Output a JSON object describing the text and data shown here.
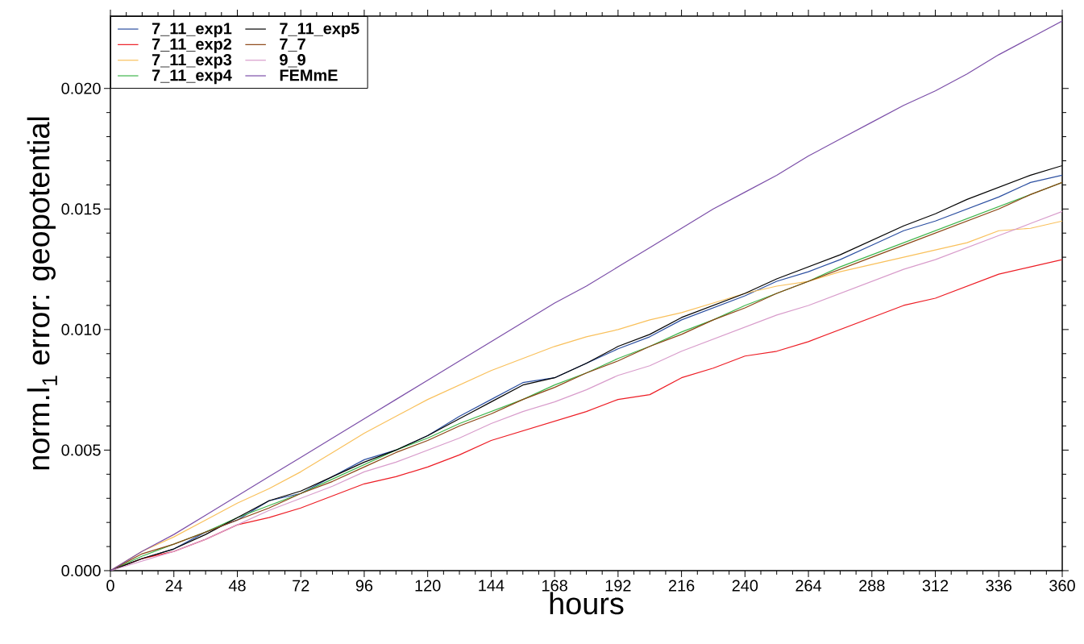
{
  "chart_data": {
    "type": "line",
    "xlabel": "hours",
    "ylabel": "norm.l$_{1}$ error: geopotential",
    "x": [
      0,
      12,
      24,
      36,
      48,
      60,
      72,
      84,
      96,
      108,
      120,
      132,
      144,
      156,
      168,
      180,
      192,
      204,
      216,
      228,
      240,
      252,
      264,
      276,
      288,
      300,
      312,
      324,
      336,
      348,
      360
    ],
    "series": [
      {
        "name": "7_11_exp1",
        "color": "#2a4ea0",
        "values": [
          0,
          0.0005,
          0.0009,
          0.0016,
          0.0021,
          0.0029,
          0.0032,
          0.0039,
          0.0046,
          0.005,
          0.0056,
          0.0064,
          0.0071,
          0.0078,
          0.008,
          0.0086,
          0.0092,
          0.0097,
          0.0104,
          0.0109,
          0.0114,
          0.012,
          0.0124,
          0.0129,
          0.0135,
          0.0141,
          0.0145,
          0.015,
          0.0155,
          0.0161,
          0.0164
        ]
      },
      {
        "name": "7_11_exp2",
        "color": "#ed1c24",
        "values": [
          0,
          0.0005,
          0.0008,
          0.0013,
          0.0019,
          0.0022,
          0.0026,
          0.0031,
          0.0036,
          0.0039,
          0.0043,
          0.0048,
          0.0054,
          0.0058,
          0.0062,
          0.0066,
          0.0071,
          0.0073,
          0.008,
          0.0084,
          0.0089,
          0.0091,
          0.0095,
          0.01,
          0.0105,
          0.011,
          0.0113,
          0.0118,
          0.0123,
          0.0126,
          0.0129
        ]
      },
      {
        "name": "7_11_exp3",
        "color": "#f9c05b",
        "values": [
          0,
          0.0008,
          0.0014,
          0.0021,
          0.0028,
          0.0034,
          0.0041,
          0.0049,
          0.0057,
          0.0064,
          0.0071,
          0.0077,
          0.0083,
          0.0088,
          0.0093,
          0.0097,
          0.01,
          0.0104,
          0.0107,
          0.0111,
          0.0115,
          0.0118,
          0.012,
          0.0124,
          0.0127,
          0.013,
          0.0133,
          0.0136,
          0.0141,
          0.0142,
          0.0145
        ]
      },
      {
        "name": "7_11_exp4",
        "color": "#3db54a",
        "values": [
          0,
          0.0006,
          0.0011,
          0.0016,
          0.0022,
          0.0027,
          0.0032,
          0.0038,
          0.0044,
          0.005,
          0.0055,
          0.0061,
          0.0066,
          0.0071,
          0.0077,
          0.0082,
          0.0088,
          0.0093,
          0.0099,
          0.0104,
          0.011,
          0.0115,
          0.012,
          0.0126,
          0.0131,
          0.0136,
          0.0141,
          0.0146,
          0.0151,
          0.0156,
          0.0161
        ]
      },
      {
        "name": "7_11_exp5",
        "color": "#000000",
        "values": [
          0,
          0.0005,
          0.0009,
          0.0015,
          0.0022,
          0.0029,
          0.0033,
          0.0039,
          0.0045,
          0.005,
          0.0056,
          0.0063,
          0.007,
          0.0077,
          0.008,
          0.0086,
          0.0093,
          0.0098,
          0.0105,
          0.011,
          0.0115,
          0.0121,
          0.0126,
          0.0131,
          0.0137,
          0.0143,
          0.0148,
          0.0154,
          0.0159,
          0.0164,
          0.0168
        ]
      },
      {
        "name": "7_7",
        "color": "#8b4513",
        "values": [
          0,
          0.0007,
          0.0011,
          0.0016,
          0.0021,
          0.0026,
          0.0032,
          0.0037,
          0.0043,
          0.0049,
          0.0054,
          0.006,
          0.0065,
          0.0071,
          0.0076,
          0.0082,
          0.0087,
          0.0093,
          0.0098,
          0.0104,
          0.0109,
          0.0115,
          0.012,
          0.0125,
          0.013,
          0.0135,
          0.014,
          0.0145,
          0.015,
          0.0156,
          0.0161
        ]
      },
      {
        "name": "9_9",
        "color": "#d89ccb",
        "values": [
          0,
          0.0004,
          0.0008,
          0.0013,
          0.0019,
          0.0025,
          0.003,
          0.0035,
          0.0041,
          0.0045,
          0.005,
          0.0055,
          0.0061,
          0.0066,
          0.007,
          0.0075,
          0.0081,
          0.0085,
          0.0091,
          0.0096,
          0.0101,
          0.0106,
          0.011,
          0.0115,
          0.012,
          0.0125,
          0.0129,
          0.0134,
          0.0139,
          0.0144,
          0.0149
        ]
      },
      {
        "name": "FEMmE",
        "color": "#7b4ea8",
        "values": [
          0,
          0.0008,
          0.0015,
          0.0023,
          0.0031,
          0.0039,
          0.0047,
          0.0055,
          0.0063,
          0.0071,
          0.0079,
          0.0087,
          0.0095,
          0.0103,
          0.0111,
          0.0118,
          0.0126,
          0.0134,
          0.0142,
          0.015,
          0.0157,
          0.0164,
          0.0172,
          0.0179,
          0.0186,
          0.0193,
          0.0199,
          0.0206,
          0.0214,
          0.0221,
          0.0228
        ]
      }
    ],
    "xlim": [
      0,
      360
    ],
    "ylim": [
      0,
      0.023
    ],
    "xticks": [
      0,
      24,
      48,
      72,
      96,
      120,
      144,
      168,
      192,
      216,
      240,
      264,
      288,
      312,
      336,
      360
    ],
    "yticks": [
      {
        "value": 0,
        "label": "0.000"
      },
      {
        "value": 0.005,
        "label": "0.005"
      },
      {
        "value": 0.01,
        "label": "0.010"
      },
      {
        "value": 0.015,
        "label": "0.015"
      },
      {
        "value": 0.02,
        "label": "0.020"
      }
    ],
    "grid": false,
    "legend": "top left",
    "marker": "none",
    "line_style": "solid"
  }
}
